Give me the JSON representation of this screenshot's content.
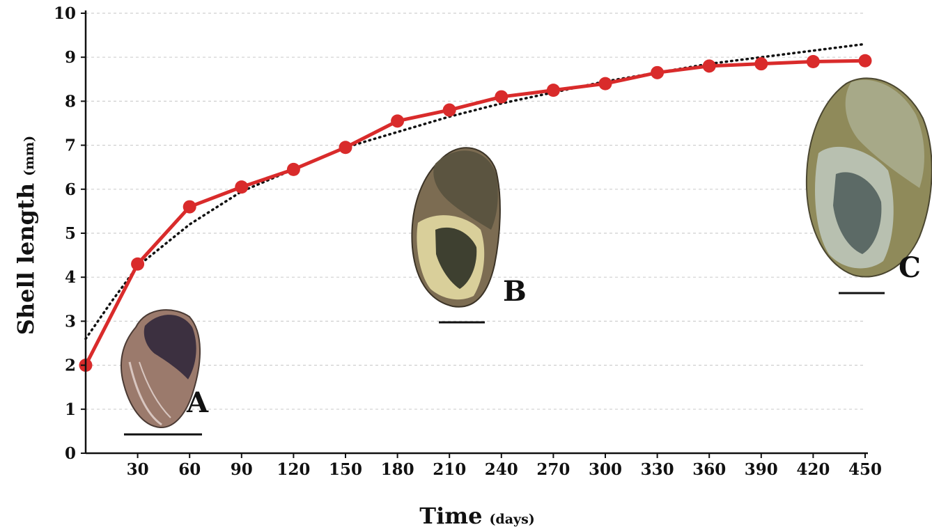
{
  "chart_data": {
    "type": "line",
    "title": "",
    "xlabel": "Time",
    "xlabel_unit": "(days)",
    "ylabel": "Shell length",
    "ylabel_unit": "(mm)",
    "xlim": [
      0,
      450
    ],
    "ylim": [
      0,
      10
    ],
    "x_ticks": [
      30,
      60,
      90,
      120,
      150,
      180,
      210,
      240,
      270,
      300,
      330,
      360,
      390,
      420,
      450
    ],
    "y_ticks": [
      0,
      1,
      2,
      3,
      4,
      5,
      6,
      7,
      8,
      9,
      10
    ],
    "grid": "horizontal dashed",
    "series": [
      {
        "name": "",
        "color": "#d92b2b",
        "x": [
          0,
          30,
          60,
          90,
          120,
          150,
          180,
          210,
          240,
          270,
          300,
          330,
          360,
          390,
          420,
          450
        ],
        "y": [
          2.0,
          4.3,
          5.6,
          6.05,
          6.45,
          6.95,
          7.55,
          7.8,
          8.1,
          8.25,
          8.4,
          8.65,
          8.8,
          8.85,
          8.9,
          8.92
        ]
      }
    ],
    "trendline": {
      "style": "dotted",
      "color": "#111111",
      "type": "logarithmic",
      "x": [
        0,
        15,
        30,
        60,
        90,
        120,
        150,
        180,
        210,
        240,
        270,
        300,
        330,
        360,
        390,
        420,
        450
      ],
      "y": [
        2.6,
        3.45,
        4.25,
        5.2,
        5.95,
        6.45,
        6.95,
        7.3,
        7.65,
        7.95,
        8.2,
        8.45,
        8.65,
        8.85,
        9.0,
        9.15,
        9.3
      ]
    },
    "annotations": [
      {
        "label": "A",
        "x": 40,
        "y": 2.0
      },
      {
        "label": "B",
        "x": 215,
        "y": 5.0
      },
      {
        "label": "C",
        "x": 440,
        "y": 6.5
      }
    ]
  }
}
